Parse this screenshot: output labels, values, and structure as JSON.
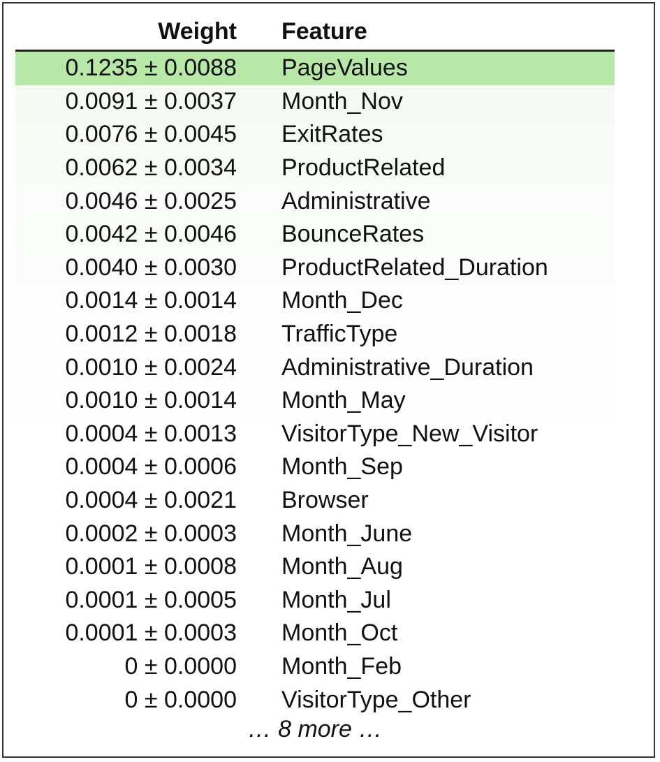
{
  "header": {
    "weight_label": "Weight",
    "feature_label": "Feature"
  },
  "highlight_color": "#b8e8a8",
  "rows": [
    {
      "weight": "0.1235 ± 0.0088",
      "feature": "PageValues",
      "shade": "#b8e8a8"
    },
    {
      "weight": "0.0091 ± 0.0037",
      "feature": "Month_Nov",
      "shade": "#f5fbf3"
    },
    {
      "weight": "0.0076 ± 0.0045",
      "feature": "ExitRates",
      "shade": "#f6fbf4"
    },
    {
      "weight": "0.0062 ± 0.0034",
      "feature": "ProductRelated",
      "shade": "#f7fcf6"
    },
    {
      "weight": "0.0046 ± 0.0025",
      "feature": "Administrative",
      "shade": "#f9fcf8"
    },
    {
      "weight": "0.0042 ± 0.0046",
      "feature": "BounceRates",
      "shade": "#f9fdf8"
    },
    {
      "weight": "0.0040 ± 0.0030",
      "feature": "ProductRelated_Duration",
      "shade": "#fafdf9"
    },
    {
      "weight": "0.0014 ± 0.0014",
      "feature": "Month_Dec",
      "shade": "#fdfefc"
    },
    {
      "weight": "0.0012 ± 0.0018",
      "feature": "TrafficType",
      "shade": "#fdfefd"
    },
    {
      "weight": "0.0010 ± 0.0024",
      "feature": "Administrative_Duration",
      "shade": "#fefffd"
    },
    {
      "weight": "0.0010 ± 0.0014",
      "feature": "Month_May",
      "shade": "#fefffd"
    },
    {
      "weight": "0.0004 ± 0.0013",
      "feature": "VisitorType_New_Visitor",
      "shade": "#ffffff"
    },
    {
      "weight": "0.0004 ± 0.0006",
      "feature": "Month_Sep",
      "shade": "#ffffff"
    },
    {
      "weight": "0.0004 ± 0.0021",
      "feature": "Browser",
      "shade": "#ffffff"
    },
    {
      "weight": "0.0002 ± 0.0003",
      "feature": "Month_June",
      "shade": "#ffffff"
    },
    {
      "weight": "0.0001 ± 0.0008",
      "feature": "Month_Aug",
      "shade": "#ffffff"
    },
    {
      "weight": "0.0001 ± 0.0005",
      "feature": "Month_Jul",
      "shade": "#ffffff"
    },
    {
      "weight": "0.0001 ± 0.0003",
      "feature": "Month_Oct",
      "shade": "#ffffff"
    },
    {
      "weight": "0 ± 0.0000",
      "feature": "Month_Feb",
      "shade": "#ffffff"
    },
    {
      "weight": "0 ± 0.0000",
      "feature": "VisitorType_Other",
      "shade": "#ffffff"
    }
  ],
  "footer": {
    "more_text": "… 8 more …"
  }
}
